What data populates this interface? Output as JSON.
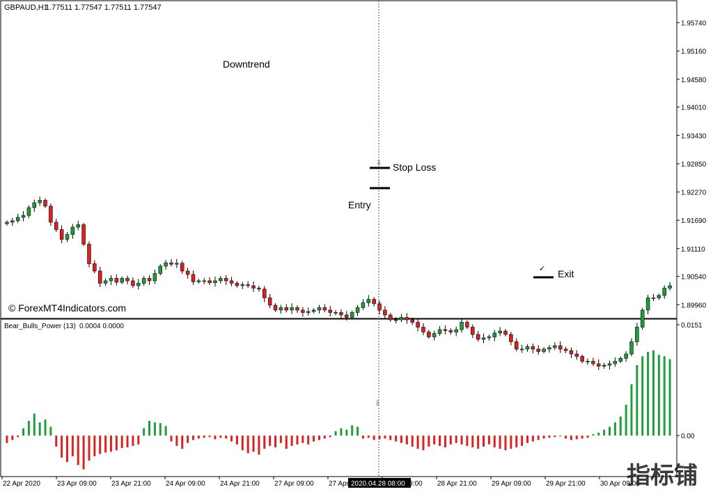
{
  "header": {
    "title": "GBPAUD,H1",
    "ohlc": "1.77511 1.77547 1.77511 1.77547"
  },
  "watermark": "© ForexMT4Indicators.com",
  "logo_text": "指标铺",
  "colors": {
    "bull": "#1e9e3a",
    "bear": "#e0201e",
    "wick": "#000000",
    "frame": "#000000",
    "crosshair": "#555555",
    "cursor_label_bg": "#000000"
  },
  "chart_data": [
    {
      "type": "candlestick",
      "panel": "main",
      "y_ticks": [
        "1.95740",
        "1.95160",
        "1.94580",
        "1.94010",
        "1.93430",
        "1.92850",
        "1.92270",
        "1.91690",
        "1.91110",
        "1.90540",
        "1.89960"
      ],
      "ylim": [
        1.8975,
        1.9612
      ],
      "annotations": [
        {
          "text": "Downtrend"
        },
        {
          "text": "Stop Loss",
          "price": 1.9287
        },
        {
          "text": "Entry",
          "price": 1.9241
        },
        {
          "text": "Exit",
          "price": 1.9058
        }
      ],
      "close": [
        1.9165,
        1.9168,
        1.9175,
        1.9179,
        1.9195,
        1.9205,
        1.921,
        1.9198,
        1.9165,
        1.915,
        1.913,
        1.914,
        1.9155,
        1.916,
        1.912,
        1.908,
        1.9065,
        1.904,
        1.9045,
        1.905,
        1.9042,
        1.905,
        1.9045,
        1.9035,
        1.904,
        1.905,
        1.9045,
        1.906,
        1.9075,
        1.9082,
        1.9079,
        1.9081,
        1.9065,
        1.9058,
        1.9043,
        1.9045,
        1.9045,
        1.9041,
        1.9045,
        1.905,
        1.9045,
        1.904,
        1.9035,
        1.9037,
        1.9035,
        1.903,
        1.9028,
        1.901,
        1.8995,
        1.8985,
        1.899,
        1.8985,
        1.899,
        1.8985,
        1.898,
        1.8982,
        1.8985,
        1.899,
        1.8985,
        1.898,
        1.898,
        1.8975,
        1.897,
        1.898,
        1.899,
        1.9,
        1.9007,
        1.8998,
        1.8985,
        1.8975,
        1.8965,
        1.8965,
        1.897,
        1.8965,
        1.896,
        1.895,
        1.894,
        1.893,
        1.8937,
        1.8945,
        1.8943,
        1.894,
        1.8945,
        1.896,
        1.895,
        1.8935,
        1.8925,
        1.8928,
        1.893,
        1.8938,
        1.8942,
        1.8935,
        1.892,
        1.8905,
        1.8905,
        1.891,
        1.8905,
        1.89,
        1.8905,
        1.8908,
        1.8912,
        1.8905,
        1.8902,
        1.8895,
        1.889,
        1.888,
        1.888,
        1.8875,
        1.887,
        1.8872,
        1.8875,
        1.888,
        1.8886,
        1.8895,
        1.892,
        1.895,
        1.8985,
        1.901,
        1.901,
        1.9015,
        1.903,
        1.9035
      ],
      "open": [
        1.9162,
        1.9165,
        1.9168,
        1.9175,
        1.9179,
        1.9195,
        1.9205,
        1.921,
        1.9198,
        1.9165,
        1.915,
        1.913,
        1.914,
        1.9155,
        1.916,
        1.912,
        1.908,
        1.9065,
        1.904,
        1.9045,
        1.905,
        1.9042,
        1.905,
        1.9045,
        1.9035,
        1.904,
        1.905,
        1.9045,
        1.906,
        1.9075,
        1.9082,
        1.9079,
        1.9081,
        1.9065,
        1.9058,
        1.9043,
        1.9045,
        1.9045,
        1.9041,
        1.9045,
        1.905,
        1.9045,
        1.904,
        1.9035,
        1.9037,
        1.9035,
        1.903,
        1.9028,
        1.901,
        1.8995,
        1.8985,
        1.899,
        1.8985,
        1.899,
        1.8985,
        1.898,
        1.8982,
        1.8985,
        1.899,
        1.8985,
        1.898,
        1.898,
        1.8975,
        1.897,
        1.898,
        1.899,
        1.9,
        1.9007,
        1.8998,
        1.8985,
        1.8975,
        1.8965,
        1.8965,
        1.897,
        1.8965,
        1.896,
        1.895,
        1.894,
        1.893,
        1.8937,
        1.8945,
        1.8943,
        1.894,
        1.8945,
        1.896,
        1.895,
        1.8935,
        1.8925,
        1.8928,
        1.893,
        1.8938,
        1.8942,
        1.8935,
        1.892,
        1.8905,
        1.8905,
        1.891,
        1.8905,
        1.89,
        1.8905,
        1.8908,
        1.8912,
        1.8905,
        1.8902,
        1.8895,
        1.889,
        1.888,
        1.888,
        1.8875,
        1.887,
        1.8872,
        1.8875,
        1.888,
        1.8886,
        1.8895,
        1.892,
        1.895,
        1.8985,
        1.901,
        1.901,
        1.9015,
        1.903
      ],
      "open_scaled_note": ""
    },
    {
      "type": "bar",
      "panel": "indicator",
      "title": "Bear_Bulls_Power (13)",
      "values_text": "0.0004 0.0000",
      "y_ticks": [
        "0.0151",
        "0.00"
      ],
      "ylim": [
        -0.0052,
        0.0151
      ],
      "values": [
        -0.001,
        -0.0006,
        -0.0002,
        0.001,
        0.002,
        0.003,
        0.0018,
        0.0022,
        0.0012,
        -0.0015,
        -0.003,
        -0.0036,
        -0.0028,
        -0.004,
        -0.0046,
        -0.0034,
        -0.0028,
        -0.0025,
        -0.0023,
        -0.0022,
        -0.002,
        -0.0017,
        -0.0016,
        -0.0014,
        -0.0012,
        0.001,
        0.002,
        0.0018,
        0.0017,
        0.0013,
        -0.0008,
        -0.0014,
        -0.0018,
        -0.001,
        -0.0006,
        -0.0004,
        -0.0003,
        -0.0002,
        -0.0005,
        -0.0003,
        -0.0004,
        -0.0008,
        -0.0012,
        -0.002,
        -0.0024,
        -0.0022,
        -0.0026,
        -0.0018,
        -0.0014,
        -0.0016,
        -0.001,
        -0.0018,
        -0.0014,
        -0.0012,
        -0.001,
        -0.0012,
        -0.0008,
        -0.0006,
        -0.0004,
        -0.0002,
        0.0006,
        0.001,
        0.0008,
        0.0014,
        0.0012,
        -0.0004,
        -0.0003,
        -0.0006,
        -0.0005,
        -0.0004,
        -0.0006,
        -0.0008,
        -0.001,
        -0.0012,
        -0.0015,
        -0.0018,
        -0.002,
        -0.0015,
        -0.0012,
        -0.0014,
        -0.0016,
        -0.0012,
        -0.001,
        -0.0012,
        -0.0014,
        -0.0016,
        -0.0018,
        -0.0015,
        -0.0012,
        -0.0016,
        -0.0018,
        -0.002,
        -0.0018,
        -0.0016,
        -0.0014,
        -0.001,
        -0.0008,
        -0.0006,
        -0.0004,
        -0.0003,
        -0.0002,
        -0.0001,
        -0.0004,
        -0.0006,
        -0.0005,
        -0.0004,
        -0.0003,
        0.0002,
        0.0004,
        0.0008,
        0.0012,
        0.0018,
        0.0026,
        0.0042,
        0.007,
        0.0096,
        0.0108,
        0.0114,
        0.0116,
        0.011,
        0.0108,
        0.0104
      ],
      "x_ticks": [
        "22 Apr 2020",
        "23 Apr 09:00",
        "23 Apr 21:00",
        "24 Apr 09:00",
        "24 Apr 21:00",
        "27 Apr 09:00",
        "27 Apr 21:00",
        "28 Apr 09:00",
        "28 Apr 21:00",
        "29 Apr 09:00",
        "29 Apr 21:00",
        "30 Apr 09:00"
      ],
      "cursor_label": "2020.04.28 08:00"
    }
  ]
}
